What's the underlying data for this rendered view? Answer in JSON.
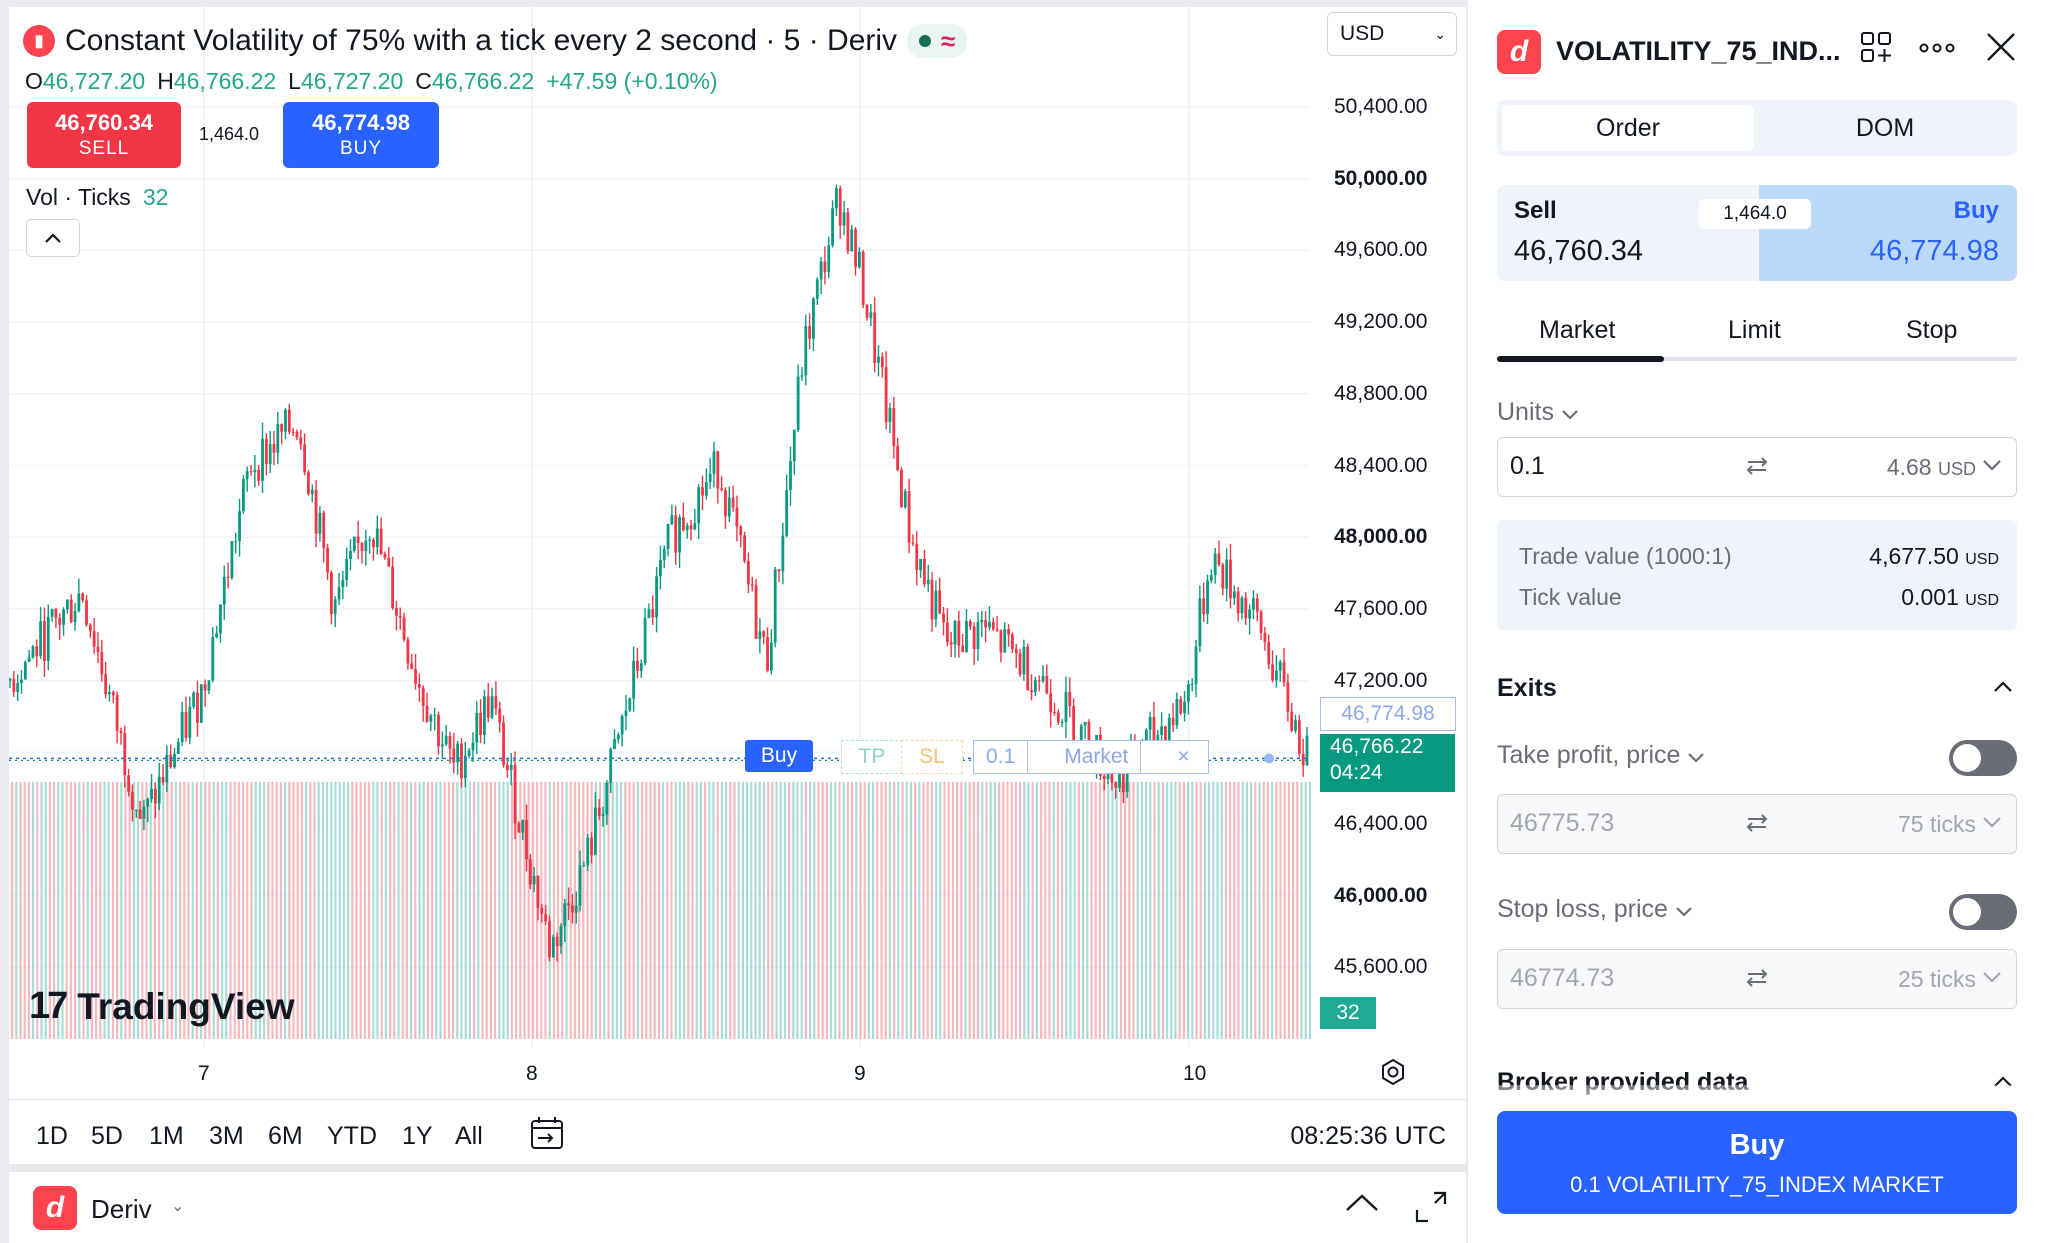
{
  "chart": {
    "title": "Constant Volatility of 75% with a tick every 2 second · 5 · Deriv",
    "currency": "USD",
    "ohlc": {
      "o_label": "O",
      "o": "46,727.20",
      "h_label": "H",
      "h": "46,766.22",
      "l_label": "L",
      "l": "46,727.20",
      "c_label": "C",
      "c": "46,766.22",
      "change": "+47.59 (+0.10%)"
    },
    "sell_price": "46,760.34",
    "sell_label": "SELL",
    "buy_price": "46,774.98",
    "buy_label": "BUY",
    "spread": "1,464.0",
    "volume_label": "Vol · Ticks",
    "volume_value": "32",
    "price_axis": [
      "50,400.00",
      "50,000.00",
      "49,600.00",
      "49,200.00",
      "48,800.00",
      "48,400.00",
      "48,000.00",
      "47,600.00",
      "47,200.00",
      "46,400.00",
      "46,000.00",
      "45,600.00"
    ],
    "bold_prices": [
      "50,000.00",
      "48,000.00",
      "46,000.00"
    ],
    "ask_tag": "46,774.98",
    "last_price": "46,766.22",
    "countdown": "04:24",
    "volume_tag": "32",
    "order_line": {
      "side": "Buy",
      "tp": "TP",
      "sl": "SL",
      "qty": "0.1",
      "type": "Market",
      "close": "×"
    },
    "x_axis": [
      "7",
      "8",
      "9",
      "10"
    ],
    "watermark": "TradingView",
    "ranges": [
      "1D",
      "5D",
      "1M",
      "3M",
      "6M",
      "YTD",
      "1Y",
      "All"
    ],
    "clock": "08:25:36 UTC",
    "colors": {
      "up": "#089981",
      "down": "#f23645",
      "ask": "#2962ff"
    }
  },
  "chart_data": {
    "type": "candlestick",
    "title": "Constant Volatility of 75% with a tick every 2 second · 5 · Deriv",
    "x_ticks": [
      "7",
      "8",
      "9",
      "10"
    ],
    "ylim": [
      45300,
      50600
    ],
    "y_ticks": [
      45600,
      46000,
      46400,
      46800,
      47200,
      47600,
      48000,
      48400,
      48800,
      49200,
      49600,
      50000,
      50400
    ],
    "path_keypoints": [
      {
        "x": 0.0,
        "y": 47200
      },
      {
        "x": 0.3,
        "y": 47700
      },
      {
        "x": 0.55,
        "y": 46400
      },
      {
        "x": 0.8,
        "y": 47150
      },
      {
        "x": 1.0,
        "y": 48400
      },
      {
        "x": 1.2,
        "y": 48650
      },
      {
        "x": 1.35,
        "y": 47600
      },
      {
        "x": 1.5,
        "y": 48100
      },
      {
        "x": 1.7,
        "y": 47200
      },
      {
        "x": 1.85,
        "y": 46700
      },
      {
        "x": 2.0,
        "y": 47100
      },
      {
        "x": 2.25,
        "y": 45700
      },
      {
        "x": 2.4,
        "y": 46200
      },
      {
        "x": 2.5,
        "y": 46700
      },
      {
        "x": 2.75,
        "y": 48000
      },
      {
        "x": 2.95,
        "y": 48400
      },
      {
        "x": 3.15,
        "y": 47300
      },
      {
        "x": 3.3,
        "y": 49000
      },
      {
        "x": 3.45,
        "y": 49900
      },
      {
        "x": 3.55,
        "y": 49400
      },
      {
        "x": 3.75,
        "y": 48000
      },
      {
        "x": 3.9,
        "y": 47400
      },
      {
        "x": 4.05,
        "y": 47500
      },
      {
        "x": 4.3,
        "y": 47200
      },
      {
        "x": 4.6,
        "y": 46650
      },
      {
        "x": 4.9,
        "y": 47100
      },
      {
        "x": 5.0,
        "y": 47900
      },
      {
        "x": 5.2,
        "y": 47500
      },
      {
        "x": 5.4,
        "y": 46766
      }
    ],
    "x_positions_of_ticks": {
      "7": 1,
      "8": 2,
      "9": 3,
      "10": 4
    },
    "last_price": 46766.22,
    "ask_price": 46774.98,
    "volume_ticks": 32
  },
  "panel": {
    "symbol": "VOLATILITY_75_IND...",
    "tabs": [
      "Order",
      "DOM"
    ],
    "sell_label": "Sell",
    "sell_price": "46,760.34",
    "buy_label": "Buy",
    "buy_price": "46,774.98",
    "spread": "1,464.0",
    "order_types": [
      "Market",
      "Limit",
      "Stop"
    ],
    "units_label": "Units",
    "units_value": "0.1",
    "units_usd": "4.68",
    "units_usd_cur": "USD",
    "trade_value_label": "Trade value (1000:1)",
    "trade_value": "4,677.50",
    "tick_value_label": "Tick value",
    "tick_value": "0.001",
    "usd": "USD",
    "exits_label": "Exits",
    "tp_label": "Take profit, price",
    "tp_price": "46775.73",
    "tp_ticks": "75 ticks",
    "sl_label": "Stop loss, price",
    "sl_price": "46774.73",
    "sl_ticks": "25 ticks",
    "broker_label": "Broker provided data",
    "submit_title": "Buy",
    "submit_sub": "0.1 VOLATILITY_75_INDEX MARKET"
  },
  "footer": {
    "broker": "Deriv"
  }
}
